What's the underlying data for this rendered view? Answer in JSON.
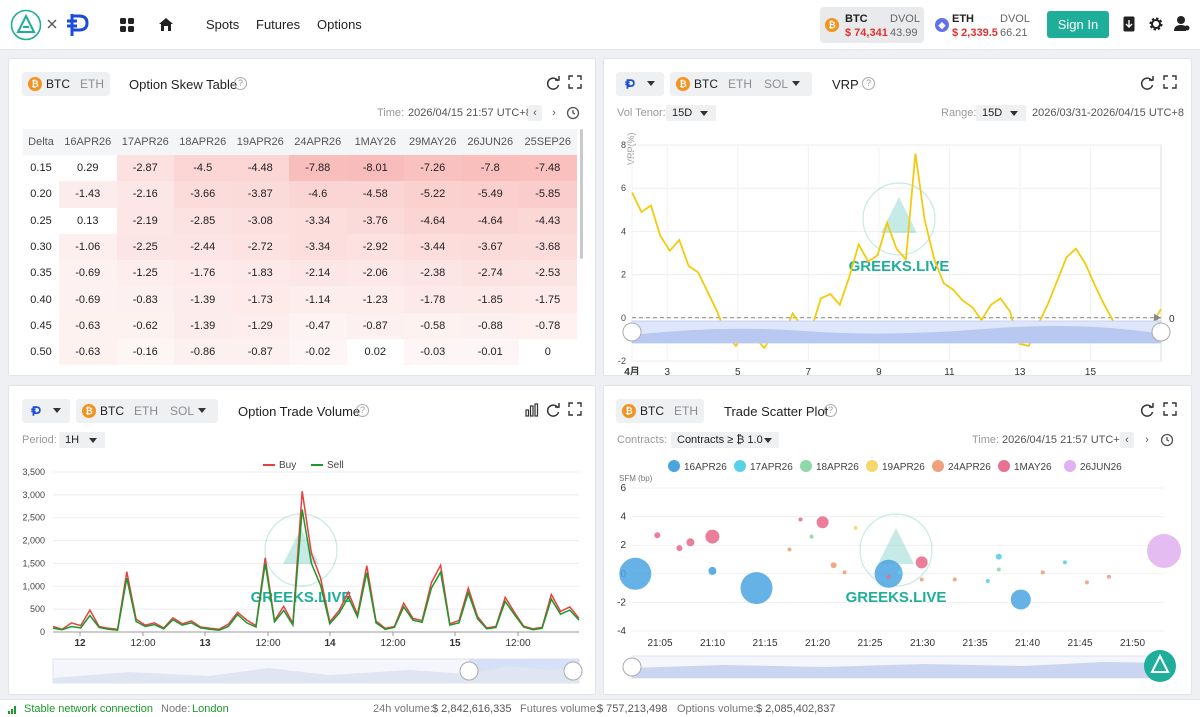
{
  "header": {
    "nav": {
      "spots": "Spots",
      "futures": "Futures",
      "options": "Options"
    },
    "btc": {
      "coin": "BTC",
      "price": "$ 74,341",
      "dvol_label": "DVOL",
      "dvol": "43.99"
    },
    "eth": {
      "coin": "ETH",
      "price": "$ 2,339.5",
      "dvol_label": "DVOL",
      "dvol": "66.21"
    },
    "signin": "Sign In"
  },
  "skew": {
    "tabs": [
      "BTC",
      "ETH"
    ],
    "title": "Option Skew Table",
    "time_label": "Time:",
    "time": "2026/04/15 21:57 UTC+8",
    "delta_header": "Delta",
    "columns": [
      "16APR26",
      "17APR26",
      "18APR26",
      "19APR26",
      "24APR26",
      "1MAY26",
      "29MAY26",
      "26JUN26",
      "25SEP26"
    ],
    "rows": [
      {
        "delta": "0.15",
        "values": [
          "0.29",
          "-2.87",
          "-4.5",
          "-4.48",
          "-7.88",
          "-8.01",
          "-7.26",
          "-7.8",
          "-7.48"
        ]
      },
      {
        "delta": "0.20",
        "values": [
          "-1.43",
          "-2.16",
          "-3.66",
          "-3.87",
          "-4.6",
          "-4.58",
          "-5.22",
          "-5.49",
          "-5.85"
        ]
      },
      {
        "delta": "0.25",
        "values": [
          "0.13",
          "-2.19",
          "-2.85",
          "-3.08",
          "-3.34",
          "-3.76",
          "-4.64",
          "-4.64",
          "-4.43"
        ]
      },
      {
        "delta": "0.30",
        "values": [
          "-1.06",
          "-2.25",
          "-2.44",
          "-2.72",
          "-3.34",
          "-2.92",
          "-3.44",
          "-3.67",
          "-3.68"
        ]
      },
      {
        "delta": "0.35",
        "values": [
          "-0.69",
          "-1.25",
          "-1.76",
          "-1.83",
          "-2.14",
          "-2.06",
          "-2.38",
          "-2.74",
          "-2.53"
        ]
      },
      {
        "delta": "0.40",
        "values": [
          "-0.69",
          "-0.83",
          "-1.39",
          "-1.73",
          "-1.14",
          "-1.23",
          "-1.78",
          "-1.85",
          "-1.75"
        ]
      },
      {
        "delta": "0.45",
        "values": [
          "-0.63",
          "-0.62",
          "-1.39",
          "-1.29",
          "-0.47",
          "-0.87",
          "-0.58",
          "-0.88",
          "-0.78"
        ]
      },
      {
        "delta": "0.50",
        "values": [
          "-0.63",
          "-0.16",
          "-0.86",
          "-0.87",
          "-0.02",
          "0.02",
          "-0.03",
          "-0.01",
          "0"
        ]
      }
    ]
  },
  "vrp": {
    "tabs": [
      "BTC",
      "ETH",
      "SOL"
    ],
    "title": "VRP",
    "tenor_label": "Vol Tenor:",
    "tenor": "15D",
    "range_label": "Range:",
    "range": "15D",
    "range_dates": "2026/03/31-2026/04/15 UTC+8",
    "ylabel": "VRP(%)",
    "current_label": "0",
    "watermark": "GREEKS.LIVE"
  },
  "volume": {
    "tabs": [
      "BTC",
      "ETH",
      "SOL"
    ],
    "title": "Option Trade Volume",
    "period_label": "Period:",
    "period": "1H",
    "watermark": "GREEKS.LIVE"
  },
  "scatter": {
    "tabs": [
      "BTC",
      "ETH"
    ],
    "title": "Trade Scatter Plot",
    "contracts_label": "Contracts:",
    "contracts": "Contracts ≥ ₿ 1.0",
    "time_label": "Time:",
    "time": "2026/04/15 21:57 UTC+8",
    "watermark": "GREEKS.LIVE"
  },
  "chart_data": [
    {
      "type": "line",
      "title": "VRP",
      "ylabel": "VRP(%)",
      "ylim": [
        -2,
        8
      ],
      "yticks": [
        -2,
        0,
        2,
        4,
        6,
        8
      ],
      "xticks": [
        "4月",
        "3",
        "5",
        "7",
        "9",
        "11",
        "13",
        "15"
      ],
      "series": [
        {
          "values": [
            5.8,
            4.9,
            5.2,
            3.8,
            3.1,
            3.6,
            2.4,
            2.1,
            1.2,
            0.3,
            -0.8,
            -1.3,
            -0.6,
            -0.9,
            -1.4,
            -0.7,
            -0.9,
            0.2,
            -0.4,
            -0.5,
            0.9,
            1.1,
            0.6,
            1.9,
            3.4,
            2.6,
            2.9,
            4.4,
            3.2,
            2.7,
            7.6,
            4.5,
            2.7,
            1.6,
            1.3,
            0.8,
            0.5,
            -0.1,
            0.6,
            0.9,
            0.3,
            -1.2,
            -1.3,
            -0.3,
            0.6,
            1.7,
            2.8,
            3.2,
            2.5,
            1.5,
            0.6,
            -0.2,
            -0.8,
            -0.6,
            -0.9,
            -0.3,
            0.4
          ]
        }
      ],
      "grid": true
    },
    {
      "type": "line",
      "title": "Option Trade Volume",
      "ylim": [
        0,
        3500
      ],
      "yticks": [
        "0",
        "500",
        "1,000",
        "1,500",
        "2,000",
        "2,500",
        "3,000",
        "3,500"
      ],
      "xticks": [
        "12",
        "12:00",
        "13",
        "12:00",
        "14",
        "12:00",
        "15",
        "12:00"
      ],
      "legend": "top",
      "series": [
        {
          "name": "Buy",
          "color": "#e84040",
          "values": [
            120,
            60,
            200,
            140,
            480,
            120,
            80,
            60,
            1320,
            280,
            150,
            200,
            90,
            310,
            180,
            240,
            110,
            80,
            60,
            170,
            430,
            260,
            140,
            1620,
            250,
            560,
            190,
            3080,
            1720,
            1180,
            220,
            470,
            870,
            380,
            1450,
            240,
            80,
            120,
            630,
            300,
            250,
            1080,
            1460,
            180,
            250,
            960,
            340,
            90,
            120,
            760,
            430,
            130,
            70,
            100,
            820,
            450,
            550,
            300
          ]
        },
        {
          "name": "Sell",
          "color": "#1a9a2a",
          "values": [
            80,
            50,
            120,
            90,
            360,
            100,
            60,
            40,
            1180,
            230,
            120,
            160,
            70,
            270,
            150,
            200,
            90,
            60,
            40,
            120,
            380,
            200,
            110,
            1500,
            220,
            470,
            150,
            2680,
            1500,
            1020,
            180,
            410,
            760,
            330,
            1300,
            200,
            60,
            100,
            550,
            260,
            210,
            960,
            1310,
            150,
            200,
            860,
            290,
            70,
            100,
            670,
            380,
            110,
            50,
            80,
            720,
            390,
            480,
            260
          ]
        }
      ],
      "grid": true
    },
    {
      "type": "scatter",
      "title": "Trade Scatter Plot",
      "ylabel": "SFM (bp)",
      "ylim": [
        -4,
        6
      ],
      "yticks": [
        -4,
        -2,
        0,
        2,
        4,
        6
      ],
      "xticks": [
        "21:05",
        "21:10",
        "21:15",
        "21:20",
        "21:25",
        "21:30",
        "21:35",
        "21:40",
        "21:45",
        "21:50"
      ],
      "legend": "top",
      "series": [
        {
          "name": "16APR26",
          "color": "#4ba3e0",
          "points": [
            [
              21.05,
              0
            ],
            [
              21.16,
              -1
            ],
            [
              21.28,
              0
            ],
            [
              21.4,
              -1.8
            ],
            [
              21.12,
              0.2
            ]
          ]
        },
        {
          "name": "17APR26",
          "color": "#5ad0e8",
          "points": [
            [
              21.38,
              1.2
            ],
            [
              21.29,
              0.1
            ],
            [
              21.44,
              0.8
            ],
            [
              21.37,
              -0.5
            ]
          ]
        },
        {
          "name": "18APR26",
          "color": "#8fd8a8",
          "points": [
            [
              21.21,
              2.6
            ],
            [
              21.38,
              0.3
            ]
          ]
        },
        {
          "name": "19APR26",
          "color": "#f5d76e",
          "points": [
            [
              21.25,
              3.2
            ],
            [
              21.31,
              0.9
            ]
          ]
        },
        {
          "name": "24APR26",
          "color": "#f0a07a",
          "points": [
            [
              21.23,
              0.6
            ],
            [
              21.34,
              -0.4
            ],
            [
              21.46,
              -0.6
            ],
            [
              21.48,
              -0.2
            ],
            [
              21.19,
              1.7
            ],
            [
              21.24,
              0.1
            ],
            [
              21.31,
              -0.4
            ],
            [
              21.42,
              0.1
            ]
          ]
        },
        {
          "name": "1MAY26",
          "color": "#e87090",
          "points": [
            [
              21.1,
              2.2
            ],
            [
              21.12,
              2.6
            ],
            [
              21.22,
              3.6
            ],
            [
              21.31,
              0.8
            ],
            [
              21.28,
              -0.2
            ],
            [
              21.09,
              1.8
            ],
            [
              21.07,
              2.7
            ],
            [
              21.2,
              3.8
            ]
          ]
        },
        {
          "name": "26JUN26",
          "color": "#e0b0f0",
          "points": [
            [
              21.53,
              1.6
            ]
          ]
        }
      ],
      "grid": true
    }
  ]
}
